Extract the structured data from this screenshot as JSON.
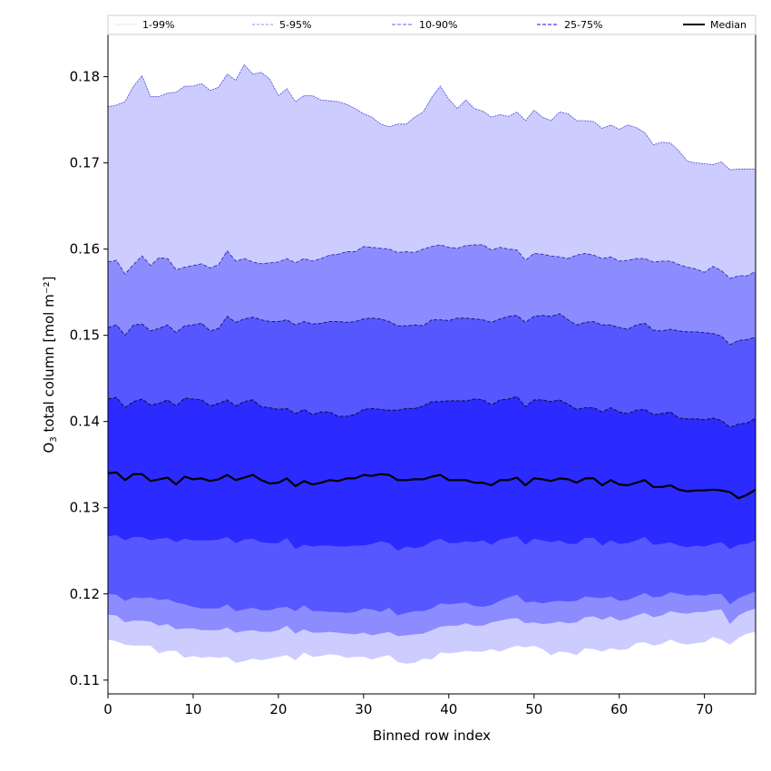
{
  "chart_data": {
    "type": "area",
    "title": "",
    "xlabel": "Binned row index",
    "ylabel_main": "O",
    "ylabel_sub": "3",
    "ylabel_rest": " total column [mol m⁻²]",
    "xlim": [
      0,
      76
    ],
    "ylim": [
      0.1084,
      0.1849
    ],
    "xticks": [
      0,
      10,
      20,
      30,
      40,
      50,
      60,
      70
    ],
    "xtick_labels": [
      "0",
      "10",
      "20",
      "30",
      "40",
      "50",
      "60",
      "70"
    ],
    "yticks": [
      0.11,
      0.12,
      0.13,
      0.14,
      0.15,
      0.16,
      0.17,
      0.18
    ],
    "ytick_labels": [
      "0.11",
      "0.12",
      "0.13",
      "0.14",
      "0.15",
      "0.16",
      "0.17",
      "0.18"
    ],
    "grid": false,
    "legend_position": "top",
    "legend": [
      {
        "label": "1-99%",
        "style": "dotted",
        "color": "#ccccff"
      },
      {
        "label": "5-95%",
        "style": "dashed",
        "color": "#8c8cff"
      },
      {
        "label": "10-90%",
        "style": "dashed",
        "color": "#5757ff"
      },
      {
        "label": "25-75%",
        "style": "dashed",
        "color": "#2b2bff"
      },
      {
        "label": "Median",
        "style": "solid",
        "color": "#000000"
      }
    ],
    "colors": {
      "p1_99": "#ccccff",
      "p5_95": "#8c8cff",
      "p10_90": "#5757ff",
      "p25_75": "#2b2bff",
      "median": "#000000"
    },
    "x": [
      0,
      1,
      2,
      3,
      4,
      5,
      6,
      7,
      8,
      9,
      10,
      11,
      12,
      13,
      14,
      15,
      16,
      17,
      18,
      19,
      20,
      21,
      22,
      23,
      24,
      25,
      26,
      27,
      28,
      29,
      30,
      31,
      32,
      33,
      34,
      35,
      36,
      37,
      38,
      39,
      40,
      41,
      42,
      43,
      44,
      45,
      46,
      47,
      48,
      49,
      50,
      51,
      52,
      53,
      54,
      55,
      56,
      57,
      58,
      59,
      60,
      61,
      62,
      63,
      64,
      65,
      66,
      67,
      68,
      69,
      70,
      71,
      72,
      73,
      74,
      75,
      76
    ],
    "series": [
      {
        "name": "p99",
        "values": [
          0.1765,
          0.1767,
          0.1771,
          0.1789,
          0.1801,
          0.1777,
          0.1777,
          0.1781,
          0.1782,
          0.1789,
          0.1789,
          0.1792,
          0.1784,
          0.1788,
          0.1803,
          0.1796,
          0.1814,
          0.1803,
          0.1805,
          0.1797,
          0.1778,
          0.1786,
          0.1771,
          0.1778,
          0.1778,
          0.1773,
          0.1772,
          0.1771,
          0.1768,
          0.1763,
          0.1757,
          0.1753,
          0.1745,
          0.1742,
          0.1745,
          0.1745,
          0.1753,
          0.1759,
          0.1776,
          0.1789,
          0.1774,
          0.1763,
          0.1773,
          0.1763,
          0.176,
          0.1753,
          0.1756,
          0.1754,
          0.1759,
          0.1749,
          0.1761,
          0.1753,
          0.1749,
          0.1759,
          0.1757,
          0.1749,
          0.1749,
          0.1748,
          0.174,
          0.1744,
          0.1739,
          0.1744,
          0.1741,
          0.1735,
          0.1721,
          0.1724,
          0.1723,
          0.1714,
          0.1702,
          0.17,
          0.1699,
          0.1698,
          0.1701,
          0.1692,
          0.1693,
          0.1693,
          0.1693
        ]
      },
      {
        "name": "p95",
        "values": [
          0.1585,
          0.1587,
          0.1571,
          0.1582,
          0.1592,
          0.1581,
          0.159,
          0.1589,
          0.1576,
          0.1579,
          0.1581,
          0.1583,
          0.1578,
          0.1582,
          0.1598,
          0.1586,
          0.1589,
          0.1585,
          0.1583,
          0.1584,
          0.1585,
          0.1589,
          0.1584,
          0.1589,
          0.1586,
          0.1589,
          0.1593,
          0.1594,
          0.1597,
          0.1597,
          0.1603,
          0.1602,
          0.1601,
          0.16,
          0.1596,
          0.1597,
          0.1596,
          0.16,
          0.1603,
          0.1605,
          0.1602,
          0.1601,
          0.1604,
          0.1605,
          0.1605,
          0.1599,
          0.1602,
          0.16,
          0.1599,
          0.1587,
          0.1595,
          0.1594,
          0.1592,
          0.1591,
          0.1589,
          0.1593,
          0.1595,
          0.1593,
          0.1589,
          0.1591,
          0.1586,
          0.1587,
          0.1589,
          0.1589,
          0.1585,
          0.1586,
          0.1586,
          0.1582,
          0.1579,
          0.1577,
          0.1573,
          0.158,
          0.1575,
          0.1566,
          0.1569,
          0.1569,
          0.1574
        ]
      },
      {
        "name": "p90",
        "values": [
          0.1509,
          0.1512,
          0.15,
          0.1512,
          0.1513,
          0.1505,
          0.1508,
          0.1512,
          0.1503,
          0.1511,
          0.1512,
          0.1514,
          0.1505,
          0.1508,
          0.1522,
          0.1515,
          0.1519,
          0.1521,
          0.1518,
          0.1516,
          0.1516,
          0.1518,
          0.1512,
          0.1516,
          0.1513,
          0.1514,
          0.1516,
          0.1516,
          0.1515,
          0.1516,
          0.1519,
          0.152,
          0.1519,
          0.1516,
          0.1511,
          0.1511,
          0.1512,
          0.1511,
          0.1518,
          0.1518,
          0.1517,
          0.152,
          0.152,
          0.1519,
          0.1518,
          0.1515,
          0.1519,
          0.1522,
          0.1523,
          0.1515,
          0.1522,
          0.1523,
          0.1522,
          0.1525,
          0.1518,
          0.1512,
          0.1515,
          0.1516,
          0.1512,
          0.1512,
          0.1509,
          0.1507,
          0.1512,
          0.1514,
          0.1506,
          0.1505,
          0.1507,
          0.1505,
          0.1504,
          0.1504,
          0.1503,
          0.1502,
          0.1499,
          0.1489,
          0.1494,
          0.1495,
          0.1498
        ]
      },
      {
        "name": "p75",
        "values": [
          0.1426,
          0.1428,
          0.1416,
          0.1423,
          0.1426,
          0.1419,
          0.1421,
          0.1425,
          0.1418,
          0.1427,
          0.1426,
          0.1425,
          0.1418,
          0.1421,
          0.1425,
          0.1418,
          0.1423,
          0.1425,
          0.1417,
          0.1416,
          0.1414,
          0.1415,
          0.1409,
          0.1414,
          0.1408,
          0.1411,
          0.1411,
          0.1406,
          0.1406,
          0.1408,
          0.1414,
          0.1415,
          0.1414,
          0.1413,
          0.1413,
          0.1415,
          0.1415,
          0.1418,
          0.1423,
          0.1423,
          0.1424,
          0.1424,
          0.1424,
          0.1426,
          0.1425,
          0.1419,
          0.1425,
          0.1426,
          0.1429,
          0.1417,
          0.1425,
          0.1425,
          0.1423,
          0.1425,
          0.142,
          0.1414,
          0.1416,
          0.1416,
          0.1411,
          0.1416,
          0.1411,
          0.1409,
          0.1413,
          0.1414,
          0.1408,
          0.1409,
          0.1411,
          0.1404,
          0.1403,
          0.1403,
          0.1402,
          0.1404,
          0.1401,
          0.1393,
          0.1397,
          0.1398,
          0.1404
        ]
      },
      {
        "name": "median",
        "values": [
          0.134,
          0.1341,
          0.1332,
          0.1339,
          0.1339,
          0.1331,
          0.1333,
          0.1335,
          0.1327,
          0.1336,
          0.1333,
          0.1334,
          0.1331,
          0.1333,
          0.1338,
          0.1332,
          0.1335,
          0.1338,
          0.1332,
          0.1328,
          0.1329,
          0.1334,
          0.1325,
          0.1331,
          0.1327,
          0.1329,
          0.1332,
          0.1331,
          0.1334,
          0.1334,
          0.1338,
          0.1337,
          0.1339,
          0.1338,
          0.1332,
          0.1332,
          0.1333,
          0.1333,
          0.1336,
          0.1338,
          0.1332,
          0.1332,
          0.1332,
          0.1329,
          0.1329,
          0.1326,
          0.1332,
          0.1332,
          0.1335,
          0.1326,
          0.1334,
          0.1333,
          0.1331,
          0.1334,
          0.1333,
          0.1329,
          0.1334,
          0.1334,
          0.1326,
          0.1332,
          0.1327,
          0.1326,
          0.1329,
          0.1332,
          0.1324,
          0.1324,
          0.1326,
          0.1321,
          0.1319,
          0.132,
          0.132,
          0.1321,
          0.132,
          0.1318,
          0.1311,
          0.1315,
          0.1321
        ]
      },
      {
        "name": "p25",
        "values": [
          0.1267,
          0.1268,
          0.1262,
          0.1266,
          0.1266,
          0.1262,
          0.1264,
          0.1265,
          0.126,
          0.1264,
          0.1262,
          0.1262,
          0.1262,
          0.1263,
          0.1266,
          0.1259,
          0.1263,
          0.1264,
          0.126,
          0.1259,
          0.1259,
          0.1265,
          0.1252,
          0.1257,
          0.1255,
          0.1256,
          0.1256,
          0.1255,
          0.1255,
          0.1256,
          0.1256,
          0.1258,
          0.1261,
          0.1259,
          0.125,
          0.1255,
          0.1253,
          0.1255,
          0.1261,
          0.1264,
          0.1259,
          0.1259,
          0.1261,
          0.126,
          0.1262,
          0.1257,
          0.1263,
          0.1265,
          0.1267,
          0.1257,
          0.1264,
          0.1262,
          0.126,
          0.1262,
          0.1258,
          0.1258,
          0.1265,
          0.1265,
          0.1256,
          0.1262,
          0.1258,
          0.1259,
          0.1262,
          0.1266,
          0.1257,
          0.1258,
          0.126,
          0.1256,
          0.1254,
          0.1256,
          0.1255,
          0.1258,
          0.126,
          0.1252,
          0.1257,
          0.1258,
          0.1262
        ]
      },
      {
        "name": "p10",
        "values": [
          0.12,
          0.1199,
          0.1192,
          0.1196,
          0.1195,
          0.1196,
          0.1193,
          0.1194,
          0.119,
          0.1188,
          0.1185,
          0.1183,
          0.1183,
          0.1183,
          0.1188,
          0.118,
          0.1182,
          0.1184,
          0.1181,
          0.1181,
          0.1184,
          0.1185,
          0.118,
          0.1187,
          0.118,
          0.118,
          0.1179,
          0.1179,
          0.1178,
          0.1179,
          0.1183,
          0.1182,
          0.1179,
          0.1184,
          0.1175,
          0.1178,
          0.118,
          0.118,
          0.1183,
          0.1189,
          0.1188,
          0.1189,
          0.119,
          0.1186,
          0.1185,
          0.1187,
          0.1192,
          0.1196,
          0.1199,
          0.119,
          0.1191,
          0.1189,
          0.1191,
          0.1192,
          0.1191,
          0.1192,
          0.1197,
          0.1196,
          0.1195,
          0.1197,
          0.1192,
          0.1193,
          0.1197,
          0.1201,
          0.1196,
          0.1197,
          0.1202,
          0.12,
          0.1198,
          0.1199,
          0.1198,
          0.12,
          0.12,
          0.1188,
          0.1195,
          0.1199,
          0.1203
        ]
      },
      {
        "name": "p5",
        "values": [
          0.1176,
          0.1175,
          0.1167,
          0.1169,
          0.1169,
          0.1168,
          0.1163,
          0.1165,
          0.1159,
          0.116,
          0.116,
          0.1158,
          0.1158,
          0.1158,
          0.1161,
          0.1155,
          0.1157,
          0.1158,
          0.1156,
          0.1156,
          0.1158,
          0.1163,
          0.1154,
          0.1159,
          0.1155,
          0.1155,
          0.1156,
          0.1155,
          0.1154,
          0.1153,
          0.1155,
          0.1152,
          0.1154,
          0.1156,
          0.1151,
          0.1152,
          0.1153,
          0.1154,
          0.1158,
          0.1162,
          0.1163,
          0.1163,
          0.1166,
          0.1163,
          0.1163,
          0.1167,
          0.1169,
          0.1171,
          0.1172,
          0.1166,
          0.1167,
          0.1165,
          0.1166,
          0.1168,
          0.1166,
          0.1167,
          0.1173,
          0.1174,
          0.117,
          0.1174,
          0.1169,
          0.1171,
          0.1175,
          0.1178,
          0.1173,
          0.1175,
          0.118,
          0.1178,
          0.1177,
          0.1179,
          0.1179,
          0.1181,
          0.1182,
          0.1165,
          0.1175,
          0.118,
          0.1183
        ]
      },
      {
        "name": "p1",
        "values": [
          0.1147,
          0.1145,
          0.1141,
          0.114,
          0.114,
          0.114,
          0.1131,
          0.1134,
          0.1134,
          0.1126,
          0.1128,
          0.1126,
          0.1127,
          0.1126,
          0.1127,
          0.112,
          0.1122,
          0.1125,
          0.1123,
          0.1125,
          0.1127,
          0.1129,
          0.1123,
          0.1132,
          0.1127,
          0.1128,
          0.113,
          0.1129,
          0.1126,
          0.1127,
          0.1127,
          0.1124,
          0.1127,
          0.1129,
          0.1121,
          0.1119,
          0.112,
          0.1125,
          0.1124,
          0.1132,
          0.1131,
          0.1132,
          0.1134,
          0.1133,
          0.1133,
          0.1136,
          0.1133,
          0.1137,
          0.114,
          0.1138,
          0.114,
          0.1136,
          0.1129,
          0.1133,
          0.1132,
          0.1129,
          0.1137,
          0.1136,
          0.1133,
          0.1137,
          0.1135,
          0.1136,
          0.1143,
          0.1144,
          0.114,
          0.1142,
          0.1147,
          0.1143,
          0.1141,
          0.1143,
          0.1144,
          0.115,
          0.1147,
          0.1141,
          0.1149,
          0.1154,
          0.1156
        ]
      }
    ]
  }
}
